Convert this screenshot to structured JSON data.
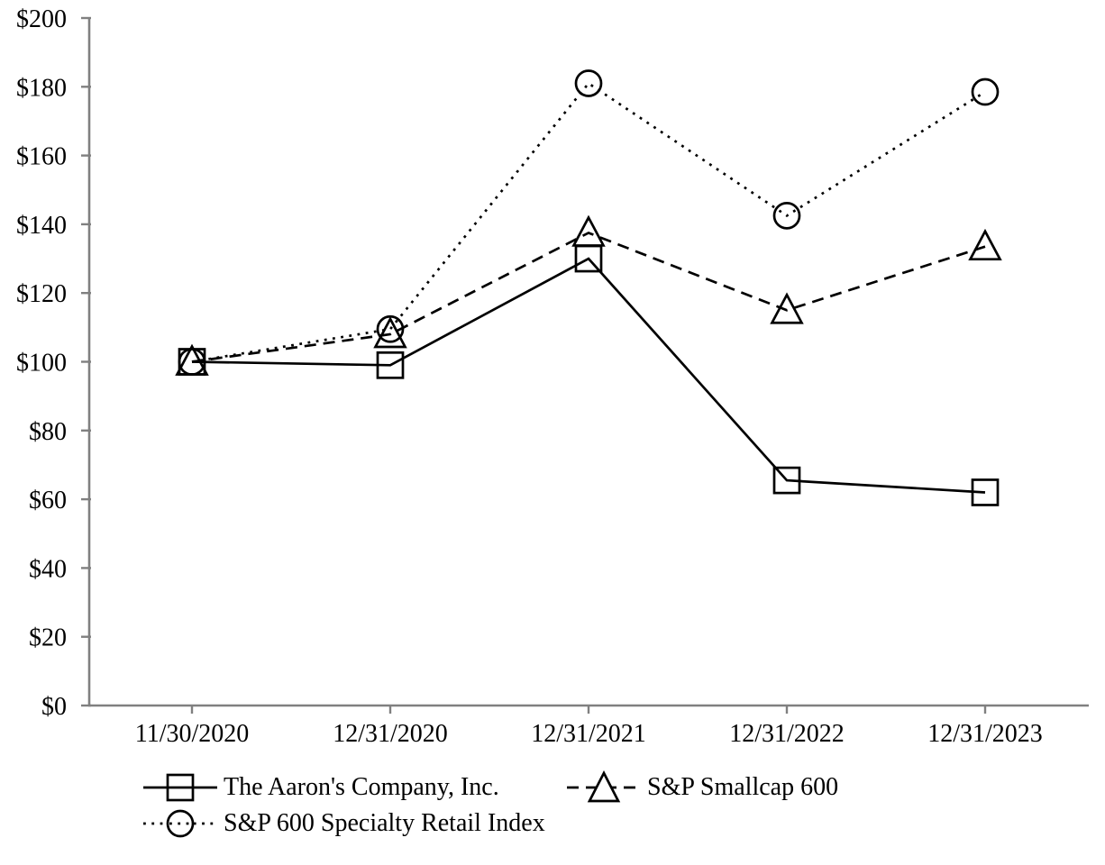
{
  "chart_data": {
    "type": "line",
    "title": "",
    "x_categories": [
      "11/30/2020",
      "12/31/2020",
      "12/31/2021",
      "12/31/2022",
      "12/31/2023"
    ],
    "y_axis": {
      "min": 0,
      "max": 200,
      "step": 20,
      "tick_prefix": "$",
      "tick_labels": [
        "$0",
        "$20",
        "$40",
        "$60",
        "$80",
        "$100",
        "$120",
        "$140",
        "$160",
        "$180",
        "$200"
      ]
    },
    "series": [
      {
        "name": "The Aaron's Company, Inc.",
        "marker": "square",
        "line_style": "solid",
        "color": "#000000",
        "values": [
          100,
          99,
          130,
          65.5,
          62
        ]
      },
      {
        "name": "S&P Smallcap 600",
        "marker": "triangle",
        "line_style": "dashed",
        "color": "#000000",
        "values": [
          100,
          108,
          137.5,
          115,
          133.5
        ]
      },
      {
        "name": "S&P 600 Specialty Retail Index",
        "marker": "circle",
        "line_style": "dotted",
        "color": "#000000",
        "values": [
          100,
          109.5,
          181,
          142.5,
          178.5
        ]
      }
    ],
    "axis_color": "#808080",
    "grid": false,
    "legend_position": "bottom-left"
  }
}
